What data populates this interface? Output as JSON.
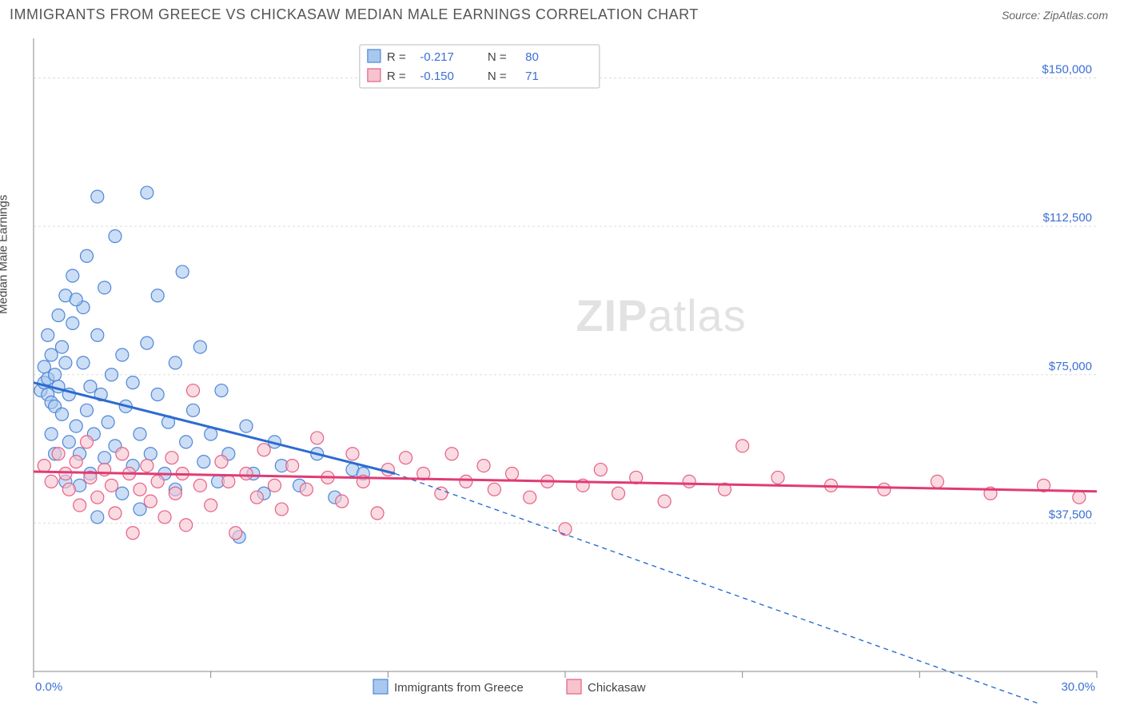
{
  "title": "IMMIGRANTS FROM GREECE VS CHICKASAW MEDIAN MALE EARNINGS CORRELATION CHART",
  "source": "Source: ZipAtlas.com",
  "ylabel": "Median Male Earnings",
  "watermark": {
    "part1": "ZIP",
    "part2": "atlas"
  },
  "chart": {
    "type": "scatter",
    "background_color": "#ffffff",
    "grid_color": "#dddddd",
    "axis_color": "#888888",
    "value_color": "#3b6fd6",
    "xlim": [
      0,
      30
    ],
    "ylim": [
      0,
      160000
    ],
    "x_tick_positions": [
      0,
      5,
      10,
      15,
      20,
      25,
      30
    ],
    "x_tick_labels_shown": {
      "0": "0.0%",
      "30": "30.0%"
    },
    "y_ticks": [
      {
        "v": 37500,
        "label": "$37,500"
      },
      {
        "v": 75000,
        "label": "$75,000"
      },
      {
        "v": 112500,
        "label": "$112,500"
      },
      {
        "v": 150000,
        "label": "$150,000"
      }
    ],
    "series": [
      {
        "name": "Immigrants from Greece",
        "key": "greece",
        "fill": "#a9c8ef",
        "stroke": "#4f86d8",
        "line_fill": "#2d6bd1",
        "marker_radius": 8,
        "marker_opacity": 0.6,
        "R": "-0.217",
        "N": "80",
        "regression": {
          "x1": 0,
          "y1": 73000,
          "x2": 10.2,
          "y2": 50000,
          "dash_to_x": 30.2,
          "dash_to_y": -14000
        },
        "points": [
          [
            0.2,
            71000
          ],
          [
            0.3,
            73000
          ],
          [
            0.4,
            70000
          ],
          [
            0.4,
            74000
          ],
          [
            0.3,
            77000
          ],
          [
            0.5,
            68000
          ],
          [
            0.5,
            80000
          ],
          [
            0.4,
            85000
          ],
          [
            0.6,
            67000
          ],
          [
            0.6,
            75000
          ],
          [
            0.7,
            90000
          ],
          [
            0.7,
            72000
          ],
          [
            0.8,
            65000
          ],
          [
            0.8,
            82000
          ],
          [
            0.9,
            78000
          ],
          [
            0.9,
            95000
          ],
          [
            1.0,
            70000
          ],
          [
            1.0,
            58000
          ],
          [
            1.1,
            88000
          ],
          [
            1.1,
            100000
          ],
          [
            1.2,
            62000
          ],
          [
            1.3,
            47000
          ],
          [
            1.3,
            55000
          ],
          [
            1.4,
            92000
          ],
          [
            1.4,
            78000
          ],
          [
            1.5,
            105000
          ],
          [
            1.5,
            66000
          ],
          [
            1.6,
            72000
          ],
          [
            1.6,
            50000
          ],
          [
            1.7,
            60000
          ],
          [
            1.8,
            120000
          ],
          [
            1.8,
            85000
          ],
          [
            1.9,
            70000
          ],
          [
            2.0,
            97000
          ],
          [
            2.0,
            54000
          ],
          [
            2.1,
            63000
          ],
          [
            2.2,
            75000
          ],
          [
            2.3,
            110000
          ],
          [
            2.3,
            57000
          ],
          [
            2.5,
            80000
          ],
          [
            2.5,
            45000
          ],
          [
            2.6,
            67000
          ],
          [
            2.8,
            52000
          ],
          [
            2.8,
            73000
          ],
          [
            3.0,
            60000
          ],
          [
            3.0,
            41000
          ],
          [
            3.2,
            83000
          ],
          [
            3.2,
            121000
          ],
          [
            3.3,
            55000
          ],
          [
            3.5,
            95000
          ],
          [
            3.5,
            70000
          ],
          [
            3.7,
            50000
          ],
          [
            3.8,
            63000
          ],
          [
            4.0,
            78000
          ],
          [
            4.0,
            46000
          ],
          [
            4.2,
            101000
          ],
          [
            4.3,
            58000
          ],
          [
            4.5,
            66000
          ],
          [
            4.7,
            82000
          ],
          [
            4.8,
            53000
          ],
          [
            5.0,
            60000
          ],
          [
            5.2,
            48000
          ],
          [
            5.3,
            71000
          ],
          [
            5.5,
            55000
          ],
          [
            5.8,
            34000
          ],
          [
            6.0,
            62000
          ],
          [
            6.2,
            50000
          ],
          [
            6.5,
            45000
          ],
          [
            6.8,
            58000
          ],
          [
            7.0,
            52000
          ],
          [
            7.5,
            47000
          ],
          [
            8.0,
            55000
          ],
          [
            8.5,
            44000
          ],
          [
            9.0,
            51000
          ],
          [
            9.3,
            50000
          ],
          [
            1.8,
            39000
          ],
          [
            0.9,
            48000
          ],
          [
            0.6,
            55000
          ],
          [
            1.2,
            94000
          ],
          [
            0.5,
            60000
          ]
        ]
      },
      {
        "name": "Chickasaw",
        "key": "chickasaw",
        "fill": "#f6c3ce",
        "stroke": "#e75f86",
        "line_fill": "#e03b74",
        "marker_radius": 8,
        "marker_opacity": 0.6,
        "R": "-0.150",
        "N": "71",
        "regression": {
          "x1": 0,
          "y1": 50500,
          "x2": 30,
          "y2": 45500
        },
        "points": [
          [
            0.3,
            52000
          ],
          [
            0.5,
            48000
          ],
          [
            0.7,
            55000
          ],
          [
            0.9,
            50000
          ],
          [
            1.0,
            46000
          ],
          [
            1.2,
            53000
          ],
          [
            1.3,
            42000
          ],
          [
            1.5,
            58000
          ],
          [
            1.6,
            49000
          ],
          [
            1.8,
            44000
          ],
          [
            2.0,
            51000
          ],
          [
            2.2,
            47000
          ],
          [
            2.3,
            40000
          ],
          [
            2.5,
            55000
          ],
          [
            2.7,
            50000
          ],
          [
            2.8,
            35000
          ],
          [
            3.0,
            46000
          ],
          [
            3.2,
            52000
          ],
          [
            3.3,
            43000
          ],
          [
            3.5,
            48000
          ],
          [
            3.7,
            39000
          ],
          [
            3.9,
            54000
          ],
          [
            4.0,
            45000
          ],
          [
            4.2,
            50000
          ],
          [
            4.3,
            37000
          ],
          [
            4.5,
            71000
          ],
          [
            4.7,
            47000
          ],
          [
            5.0,
            42000
          ],
          [
            5.3,
            53000
          ],
          [
            5.5,
            48000
          ],
          [
            5.7,
            35000
          ],
          [
            6.0,
            50000
          ],
          [
            6.3,
            44000
          ],
          [
            6.5,
            56000
          ],
          [
            6.8,
            47000
          ],
          [
            7.0,
            41000
          ],
          [
            7.3,
            52000
          ],
          [
            7.7,
            46000
          ],
          [
            8.0,
            59000
          ],
          [
            8.3,
            49000
          ],
          [
            8.7,
            43000
          ],
          [
            9.0,
            55000
          ],
          [
            9.3,
            48000
          ],
          [
            9.7,
            40000
          ],
          [
            10.0,
            51000
          ],
          [
            10.5,
            54000
          ],
          [
            11.0,
            50000
          ],
          [
            11.5,
            45000
          ],
          [
            11.8,
            55000
          ],
          [
            12.2,
            48000
          ],
          [
            12.7,
            52000
          ],
          [
            13.0,
            46000
          ],
          [
            13.5,
            50000
          ],
          [
            14.0,
            44000
          ],
          [
            14.5,
            48000
          ],
          [
            15.0,
            36000
          ],
          [
            15.5,
            47000
          ],
          [
            16.0,
            51000
          ],
          [
            16.5,
            45000
          ],
          [
            17.0,
            49000
          ],
          [
            17.8,
            43000
          ],
          [
            18.5,
            48000
          ],
          [
            19.5,
            46000
          ],
          [
            20.0,
            57000
          ],
          [
            21.0,
            49000
          ],
          [
            22.5,
            47000
          ],
          [
            24.0,
            46000
          ],
          [
            25.5,
            48000
          ],
          [
            27.0,
            45000
          ],
          [
            28.5,
            47000
          ],
          [
            29.5,
            44000
          ]
        ]
      }
    ],
    "stats_legend": {
      "R_label": "R =",
      "N_label": "N ="
    },
    "bottom_legend": [
      {
        "series": "greece"
      },
      {
        "series": "chickasaw"
      }
    ]
  }
}
